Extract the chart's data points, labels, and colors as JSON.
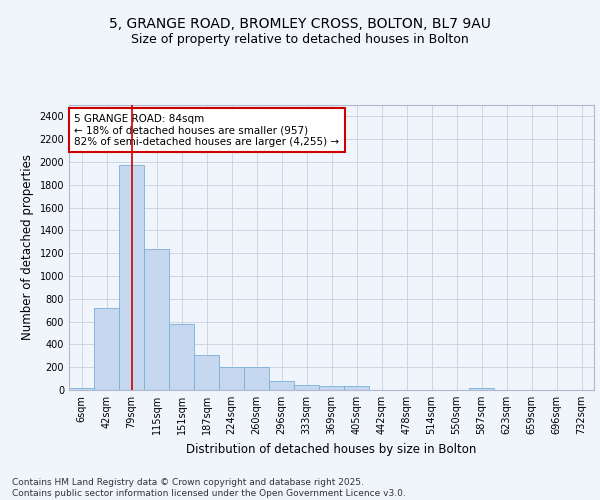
{
  "title_line1": "5, GRANGE ROAD, BROMLEY CROSS, BOLTON, BL7 9AU",
  "title_line2": "Size of property relative to detached houses in Bolton",
  "xlabel": "Distribution of detached houses by size in Bolton",
  "ylabel": "Number of detached properties",
  "bar_color": "#c5d8f0",
  "bar_edge_color": "#7ab0d8",
  "background_color": "#f0f4fb",
  "plot_bg_color": "#f0f4fb",
  "grid_color": "#c8d0e0",
  "vline_color": "#cc0000",
  "annotation_box_color": "#cc0000",
  "categories": [
    "6sqm",
    "42sqm",
    "79sqm",
    "115sqm",
    "151sqm",
    "187sqm",
    "224sqm",
    "260sqm",
    "296sqm",
    "333sqm",
    "369sqm",
    "405sqm",
    "442sqm",
    "478sqm",
    "514sqm",
    "550sqm",
    "587sqm",
    "623sqm",
    "659sqm",
    "696sqm",
    "732sqm"
  ],
  "values": [
    15,
    720,
    1970,
    1240,
    575,
    305,
    200,
    200,
    80,
    45,
    35,
    35,
    0,
    0,
    0,
    0,
    15,
    0,
    0,
    0,
    0
  ],
  "ylim": [
    0,
    2500
  ],
  "yticks": [
    0,
    200,
    400,
    600,
    800,
    1000,
    1200,
    1400,
    1600,
    1800,
    2000,
    2200,
    2400
  ],
  "vline_x": 2,
  "annotation_text": "5 GRANGE ROAD: 84sqm\n← 18% of detached houses are smaller (957)\n82% of semi-detached houses are larger (4,255) →",
  "footnote": "Contains HM Land Registry data © Crown copyright and database right 2025.\nContains public sector information licensed under the Open Government Licence v3.0.",
  "title_fontsize": 10,
  "subtitle_fontsize": 9,
  "axis_label_fontsize": 8.5,
  "tick_fontsize": 7,
  "annotation_fontsize": 7.5,
  "footnote_fontsize": 6.5
}
